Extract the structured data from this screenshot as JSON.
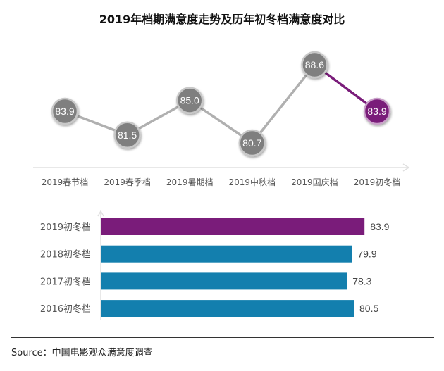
{
  "title": "2019年档期满意度走势及历年初冬档满意度对比",
  "source": "Source：中国电影观众满意度调查",
  "colors": {
    "gray_marker": "#7f7f7f",
    "line": "#b0b0b0",
    "purple": "#7a1c7a",
    "blue": "#137fae"
  },
  "chart_data": [
    {
      "type": "line",
      "categories": [
        "2019春节档",
        "2019春季档",
        "2019暑期档",
        "2019中秋档",
        "2019国庆档",
        "2019初冬档"
      ],
      "values": [
        83.9,
        81.5,
        85.0,
        80.7,
        88.6,
        83.9
      ],
      "labels": [
        "83.9",
        "81.5",
        "85.0",
        "80.7",
        "88.6",
        "83.9"
      ],
      "highlight_index": 5
    },
    {
      "type": "bar",
      "orientation": "horizontal",
      "categories": [
        "2019初冬档",
        "2018初冬档",
        "2017初冬档",
        "2016初冬档"
      ],
      "values": [
        83.9,
        79.9,
        78.3,
        80.5
      ],
      "labels": [
        "83.9",
        "79.9",
        "78.3",
        "80.5"
      ],
      "highlight_index": 0
    }
  ]
}
